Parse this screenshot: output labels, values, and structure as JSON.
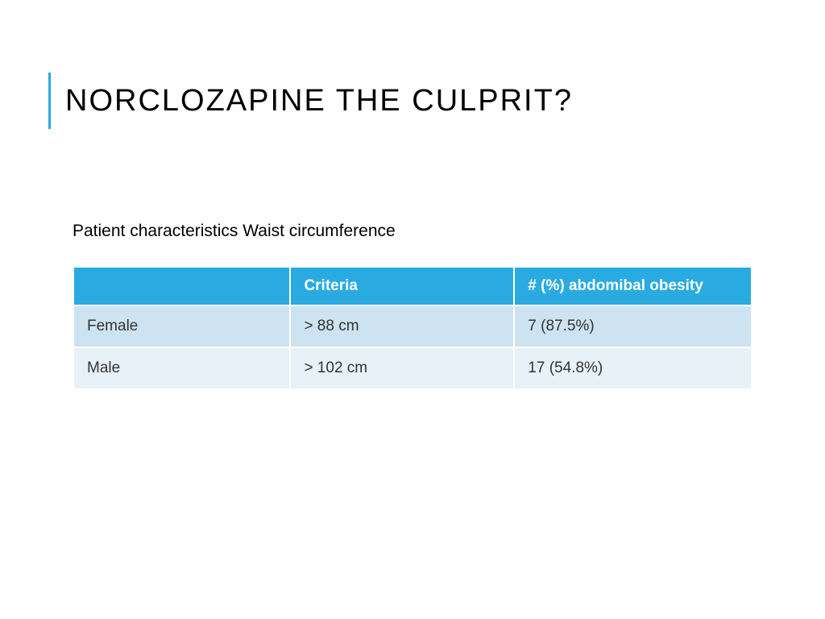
{
  "slide": {
    "title": "NORCLOZAPINE THE CULPRIT?",
    "subtitle": "Patient characteristics Waist circumference",
    "accent_color": "#29abe2",
    "background_color": "#ffffff",
    "title_fontsize": 38,
    "subtitle_fontsize": 21
  },
  "table": {
    "type": "table",
    "header_bg_color": "#29abe2",
    "header_text_color": "#ffffff",
    "row_even_bg": "#cde3f1",
    "row_odd_bg": "#e8f1f8",
    "cell_text_color": "#333333",
    "border_color": "#ffffff",
    "cell_fontsize": 19,
    "columns": [
      {
        "label": "",
        "width": "32%"
      },
      {
        "label": "Criteria",
        "width": "33%"
      },
      {
        "label": "# (%) abdomibal obesity",
        "width": "35%"
      }
    ],
    "rows": [
      {
        "category": "Female",
        "criteria": "> 88 cm",
        "obesity": "7 (87.5%)"
      },
      {
        "category": "Male",
        "criteria": "> 102 cm",
        "obesity": "17 (54.8%)"
      }
    ]
  }
}
